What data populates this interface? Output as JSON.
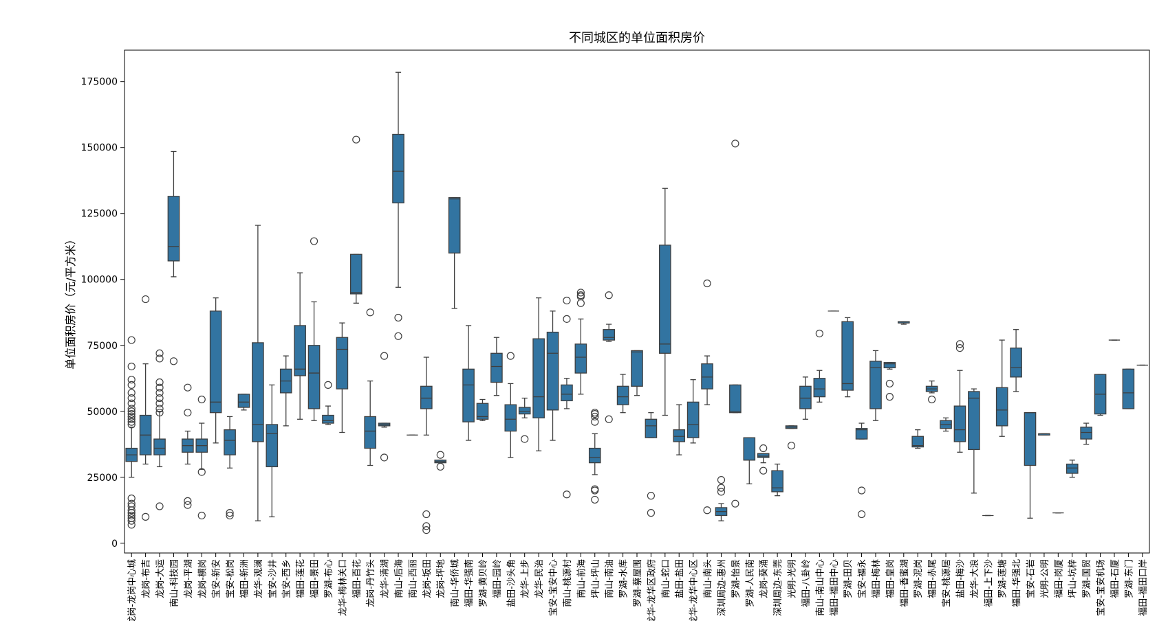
{
  "chart_data": {
    "type": "box",
    "title": "不同城区的单位面积房价",
    "ylabel": "单位面积房价（元/平方米）",
    "color": "#3274a1",
    "ylim": [
      -3700,
      186900
    ],
    "yticks": [
      0,
      25000,
      50000,
      75000,
      100000,
      125000,
      150000,
      175000
    ],
    "categories": [
      "龙岗-龙岗中心城",
      "龙岗-布吉",
      "龙岗-大运",
      "南山-科技园",
      "龙岗-平湖",
      "龙岗-横岗",
      "宝安-新安",
      "宝安-松岗",
      "福田-新洲",
      "龙华-观澜",
      "宝安-沙井",
      "宝安-西乡",
      "福田-莲花",
      "福田-景田",
      "罗湖-布心",
      "龙华-梅林关口",
      "福田-百花",
      "龙岗-丹竹头",
      "龙华-清湖",
      "南山-后海",
      "南山-西丽",
      "龙岗-坂田",
      "龙岗-坪地",
      "南山-华侨城",
      "福田-华强南",
      "罗湖-黄贝岭",
      "福田-园岭",
      "盐田-沙头角",
      "龙华-上步",
      "龙华-民治",
      "宝安-宝安中心",
      "南山-桃源村",
      "南山-前海",
      "坪山-坪山",
      "南山-南油",
      "罗湖-水库",
      "罗湖-蔡屋围",
      "龙华-龙华区政府",
      "南山-蛇口",
      "盐田-盐田",
      "龙华-龙华中心区",
      "南山-南头",
      "深圳周边-惠州",
      "罗湖-怡景",
      "罗湖-人民南",
      "龙岗-葵涌",
      "深圳周边-东莞",
      "光明-光明",
      "福田-八卦岭",
      "南山-南山中心",
      "福田-福田中心",
      "罗湖-田贝",
      "宝安-福永",
      "福田-梅林",
      "福田-皇岗",
      "福田-香蜜湖",
      "罗湖-泥岗",
      "福田-赤尾",
      "宝安-桃源居",
      "盐田-梅沙",
      "龙华-大浪",
      "福田-上下沙",
      "罗湖-莲塘",
      "福田-华强北",
      "宝安-石岩",
      "光明-公明",
      "福田-岗厦",
      "坪山-坑梓",
      "罗湖-国贸",
      "宝安-宝安机场",
      "福田-石厦",
      "罗湖-东门",
      "福田-福田口岸"
    ],
    "boxes": [
      {
        "whislo": 25000,
        "q1": 31000,
        "med": 33500,
        "q3": 36000,
        "whishi": 44000,
        "fliers": [
          7000,
          8500,
          9500,
          10500,
          11500,
          12500,
          14000,
          15000,
          17000,
          45000,
          46000,
          47000,
          48000,
          49000,
          50000,
          51000,
          53000,
          55000,
          57000,
          60000,
          62000,
          67000,
          77000
        ]
      },
      {
        "whislo": 30000,
        "q1": 33500,
        "med": 41000,
        "q3": 48500,
        "whishi": 68000,
        "fliers": [
          10000,
          92500
        ]
      },
      {
        "whislo": 29000,
        "q1": 33500,
        "med": 36000,
        "q3": 39500,
        "whishi": 50000,
        "fliers": [
          14000,
          49500,
          51000,
          53000,
          55000,
          57000,
          59000,
          61000,
          70000,
          72000
        ]
      },
      {
        "whislo": 101000,
        "q1": 107000,
        "med": 112500,
        "q3": 131500,
        "whishi": 148500,
        "fliers": [
          69000
        ]
      },
      {
        "whislo": 30000,
        "q1": 34500,
        "med": 37000,
        "q3": 39500,
        "whishi": 42500,
        "fliers": [
          14500,
          16000,
          49500,
          59000
        ]
      },
      {
        "whislo": 28000,
        "q1": 34500,
        "med": 37000,
        "q3": 39500,
        "whishi": 45500,
        "fliers": [
          10500,
          27000,
          54500
        ]
      },
      {
        "whislo": 38000,
        "q1": 49500,
        "med": 53500,
        "q3": 88000,
        "whishi": 93000,
        "fliers": []
      },
      {
        "whislo": 28500,
        "q1": 33500,
        "med": 39000,
        "q3": 43000,
        "whishi": 48000,
        "fliers": [
          10500,
          11500
        ]
      },
      {
        "whislo": 50500,
        "q1": 51500,
        "med": 53500,
        "q3": 56500,
        "whishi": 56500,
        "fliers": []
      },
      {
        "whislo": 8500,
        "q1": 38500,
        "med": 45000,
        "q3": 76000,
        "whishi": 120500,
        "fliers": []
      },
      {
        "whislo": 10000,
        "q1": 29000,
        "med": 41500,
        "q3": 45000,
        "whishi": 60000,
        "fliers": []
      },
      {
        "whislo": 44500,
        "q1": 57000,
        "med": 61500,
        "q3": 66000,
        "whishi": 71000,
        "fliers": []
      },
      {
        "whislo": 47000,
        "q1": 63500,
        "med": 66000,
        "q3": 82500,
        "whishi": 102500,
        "fliers": []
      },
      {
        "whislo": 46500,
        "q1": 51000,
        "med": 64500,
        "q3": 75000,
        "whishi": 91500,
        "fliers": [
          114500
        ]
      },
      {
        "whislo": 45000,
        "q1": 45500,
        "med": 46500,
        "q3": 48500,
        "whishi": 52000,
        "fliers": [
          60000
        ]
      },
      {
        "whislo": 42000,
        "q1": 58500,
        "med": 73500,
        "q3": 78000,
        "whishi": 83500,
        "fliers": []
      },
      {
        "whislo": 91000,
        "q1": 94500,
        "med": 95000,
        "q3": 109500,
        "whishi": 109500,
        "fliers": [
          153000
        ]
      },
      {
        "whislo": 29500,
        "q1": 36000,
        "med": 42500,
        "q3": 48000,
        "whishi": 61500,
        "fliers": [
          87500
        ]
      },
      {
        "whislo": 44000,
        "q1": 44500,
        "med": 45000,
        "q3": 45500,
        "whishi": 45500,
        "fliers": [
          32500,
          71000
        ]
      },
      {
        "whislo": 97000,
        "q1": 129000,
        "med": 141000,
        "q3": 155000,
        "whishi": 178500,
        "fliers": [
          78500,
          85500
        ]
      },
      {
        "whislo": 41000,
        "q1": 41000,
        "med": 41000,
        "q3": 41000,
        "whishi": 41000,
        "fliers": []
      },
      {
        "whislo": 41000,
        "q1": 51000,
        "med": 55000,
        "q3": 59500,
        "whishi": 70500,
        "fliers": [
          5000,
          6500,
          11000
        ]
      },
      {
        "whislo": 30500,
        "q1": 30500,
        "med": 31000,
        "q3": 31500,
        "whishi": 31500,
        "fliers": [
          29000,
          33500
        ]
      },
      {
        "whislo": 89000,
        "q1": 110000,
        "med": 130500,
        "q3": 131000,
        "whishi": 131000,
        "fliers": []
      },
      {
        "whislo": 39000,
        "q1": 46000,
        "med": 60000,
        "q3": 66000,
        "whishi": 82500,
        "fliers": []
      },
      {
        "whislo": 46500,
        "q1": 47000,
        "med": 48000,
        "q3": 53000,
        "whishi": 54500,
        "fliers": []
      },
      {
        "whislo": 56000,
        "q1": 61000,
        "med": 67000,
        "q3": 72000,
        "whishi": 78000,
        "fliers": []
      },
      {
        "whislo": 32500,
        "q1": 42500,
        "med": 47000,
        "q3": 52500,
        "whishi": 60500,
        "fliers": [
          71000
        ]
      },
      {
        "whislo": 47500,
        "q1": 49000,
        "med": 50000,
        "q3": 51500,
        "whishi": 55000,
        "fliers": [
          39500
        ]
      },
      {
        "whislo": 35000,
        "q1": 47500,
        "med": 55500,
        "q3": 77500,
        "whishi": 93000,
        "fliers": []
      },
      {
        "whislo": 39000,
        "q1": 50500,
        "med": 72000,
        "q3": 80000,
        "whishi": 88000,
        "fliers": []
      },
      {
        "whislo": 51000,
        "q1": 54000,
        "med": 56500,
        "q3": 60000,
        "whishi": 62500,
        "fliers": [
          18500,
          85000,
          92000
        ]
      },
      {
        "whislo": 56500,
        "q1": 64500,
        "med": 70500,
        "q3": 75500,
        "whishi": 85000,
        "fliers": [
          91000,
          93500,
          94000,
          95000
        ]
      },
      {
        "whislo": 26000,
        "q1": 30500,
        "med": 32500,
        "q3": 36000,
        "whishi": 41500,
        "fliers": [
          16500,
          20000,
          20500,
          46000,
          48000,
          49000,
          49500
        ]
      },
      {
        "whislo": 76500,
        "q1": 77000,
        "med": 78000,
        "q3": 81000,
        "whishi": 83000,
        "fliers": [
          47000,
          94000
        ]
      },
      {
        "whislo": 49500,
        "q1": 52500,
        "med": 55500,
        "q3": 59500,
        "whishi": 64000,
        "fliers": []
      },
      {
        "whislo": 56000,
        "q1": 59500,
        "med": 72500,
        "q3": 73000,
        "whishi": 73000,
        "fliers": []
      },
      {
        "whislo": 40000,
        "q1": 40000,
        "med": 44500,
        "q3": 47000,
        "whishi": 49500,
        "fliers": [
          11500,
          18000
        ]
      },
      {
        "whislo": 48500,
        "q1": 72000,
        "med": 75500,
        "q3": 113000,
        "whishi": 134500,
        "fliers": []
      },
      {
        "whislo": 33500,
        "q1": 38500,
        "med": 40500,
        "q3": 43000,
        "whishi": 52500,
        "fliers": []
      },
      {
        "whislo": 38000,
        "q1": 40000,
        "med": 45000,
        "q3": 53500,
        "whishi": 62000,
        "fliers": []
      },
      {
        "whislo": 52500,
        "q1": 58500,
        "med": 63000,
        "q3": 68000,
        "whishi": 71000,
        "fliers": [
          12500,
          98500
        ]
      },
      {
        "whislo": 8500,
        "q1": 10500,
        "med": 12000,
        "q3": 13500,
        "whishi": 15000,
        "fliers": [
          19500,
          21000,
          24000
        ]
      },
      {
        "whislo": 49500,
        "q1": 49500,
        "med": 50000,
        "q3": 60000,
        "whishi": 60000,
        "fliers": [
          15000,
          151500
        ]
      },
      {
        "whislo": 22500,
        "q1": 31500,
        "med": 31500,
        "q3": 40000,
        "whishi": 40000,
        "fliers": []
      },
      {
        "whislo": 30500,
        "q1": 32500,
        "med": 33000,
        "q3": 34000,
        "whishi": 34000,
        "fliers": [
          27500,
          36000
        ]
      },
      {
        "whislo": 18000,
        "q1": 19500,
        "med": 21000,
        "q3": 27500,
        "whishi": 30000,
        "fliers": []
      },
      {
        "whislo": 43500,
        "q1": 43500,
        "med": 44000,
        "q3": 44500,
        "whishi": 44500,
        "fliers": [
          37000
        ]
      },
      {
        "whislo": 47000,
        "q1": 51000,
        "med": 55000,
        "q3": 59500,
        "whishi": 63000,
        "fliers": []
      },
      {
        "whislo": 53500,
        "q1": 55500,
        "med": 58500,
        "q3": 62500,
        "whishi": 65500,
        "fliers": [
          79500
        ]
      },
      {
        "whislo": 88000,
        "q1": 88000,
        "med": 88000,
        "q3": 88000,
        "whishi": 88000,
        "fliers": []
      },
      {
        "whislo": 55500,
        "q1": 58000,
        "med": 60500,
        "q3": 84000,
        "whishi": 85500,
        "fliers": []
      },
      {
        "whislo": 39500,
        "q1": 39500,
        "med": 43000,
        "q3": 43500,
        "whishi": 45500,
        "fliers": [
          11000,
          20000
        ]
      },
      {
        "whislo": 46500,
        "q1": 51000,
        "med": 66500,
        "q3": 69000,
        "whishi": 73000,
        "fliers": []
      },
      {
        "whislo": 66000,
        "q1": 66500,
        "med": 68000,
        "q3": 68500,
        "whishi": 68500,
        "fliers": [
          55500,
          60500
        ]
      },
      {
        "whislo": 83000,
        "q1": 83500,
        "med": 83500,
        "q3": 84000,
        "whishi": 84000,
        "fliers": []
      },
      {
        "whislo": 36000,
        "q1": 36500,
        "med": 37000,
        "q3": 40500,
        "whishi": 43000,
        "fliers": []
      },
      {
        "whislo": 57000,
        "q1": 57500,
        "med": 58500,
        "q3": 59500,
        "whishi": 61500,
        "fliers": [
          54500
        ]
      },
      {
        "whislo": 42500,
        "q1": 43500,
        "med": 45000,
        "q3": 46500,
        "whishi": 47500,
        "fliers": []
      },
      {
        "whislo": 34500,
        "q1": 38500,
        "med": 43000,
        "q3": 52000,
        "whishi": 65500,
        "fliers": [
          74000,
          75500
        ]
      },
      {
        "whislo": 19000,
        "q1": 35500,
        "med": 55000,
        "q3": 57500,
        "whishi": 58500,
        "fliers": []
      },
      {
        "whislo": 10500,
        "q1": 10500,
        "med": 10500,
        "q3": 10500,
        "whishi": 10500,
        "fliers": []
      },
      {
        "whislo": 40500,
        "q1": 44500,
        "med": 50500,
        "q3": 59000,
        "whishi": 77000,
        "fliers": []
      },
      {
        "whislo": 57500,
        "q1": 63000,
        "med": 66500,
        "q3": 74000,
        "whishi": 81000,
        "fliers": []
      },
      {
        "whislo": 9500,
        "q1": 29500,
        "med": 49500,
        "q3": 49500,
        "whishi": 49500,
        "fliers": []
      },
      {
        "whislo": 41000,
        "q1": 41000,
        "med": 41500,
        "q3": 41500,
        "whishi": 41500,
        "fliers": []
      },
      {
        "whislo": 11500,
        "q1": 11500,
        "med": 11500,
        "q3": 11500,
        "whishi": 11500,
        "fliers": []
      },
      {
        "whislo": 25000,
        "q1": 26500,
        "med": 28500,
        "q3": 30000,
        "whishi": 31500,
        "fliers": []
      },
      {
        "whislo": 37500,
        "q1": 39500,
        "med": 42000,
        "q3": 44000,
        "whishi": 45500,
        "fliers": []
      },
      {
        "whislo": 48500,
        "q1": 49000,
        "med": 56500,
        "q3": 64000,
        "whishi": 64000,
        "fliers": []
      },
      {
        "whislo": 77000,
        "q1": 77000,
        "med": 77000,
        "q3": 77000,
        "whishi": 77000,
        "fliers": []
      },
      {
        "whislo": 51000,
        "q1": 51000,
        "med": 57000,
        "q3": 66000,
        "whishi": 66000,
        "fliers": []
      },
      {
        "whislo": 67500,
        "q1": 67500,
        "med": 67500,
        "q3": 67500,
        "whishi": 67500,
        "fliers": []
      }
    ]
  }
}
